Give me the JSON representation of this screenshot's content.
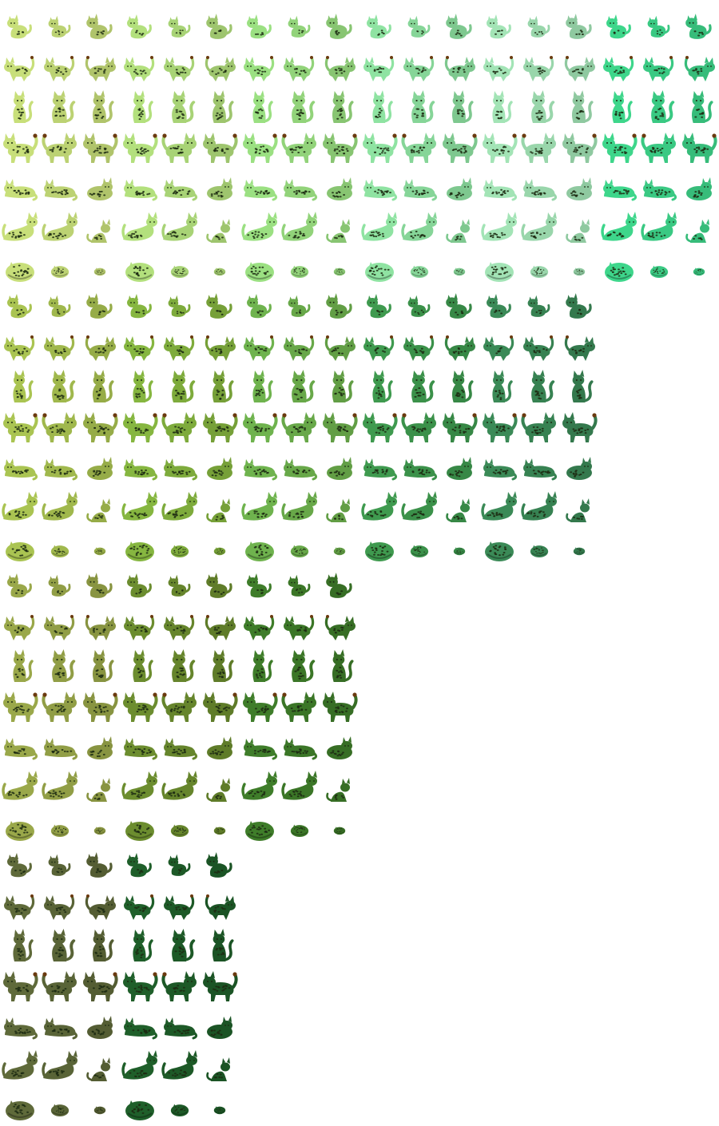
{
  "sprite_sheet": {
    "title": "",
    "blocks": [
      {
        "name": "light-green-cats",
        "palettes": [
          "#c8df7a",
          "#b3e07d",
          "#9be082",
          "#8fe3a2",
          "#a3e4b6",
          "#3ed68b"
        ],
        "rows": [
          "kitten",
          "adolescent",
          "adult-sitting",
          "adult-standing",
          "adult-lying",
          "adult-stretching",
          "sleeping"
        ]
      },
      {
        "name": "mid-green-cats",
        "palettes": [
          "#aac452",
          "#86b640",
          "#6fb34e",
          "#3f9a4f",
          "#3b8a57"
        ],
        "rows": [
          "kitten",
          "adolescent",
          "adult-sitting",
          "adult-standing",
          "adult-lying",
          "adult-stretching",
          "sleeping"
        ]
      },
      {
        "name": "olive-green-cats",
        "palettes": [
          "#9aa84a",
          "#6c8d2f",
          "#3f7d2a"
        ],
        "rows": [
          "kitten",
          "adolescent",
          "adult-sitting",
          "adult-standing",
          "adult-lying",
          "adult-stretching",
          "sleeping"
        ]
      },
      {
        "name": "dark-green-cats",
        "palettes": [
          "#5f6a3a",
          "#1f5f2a"
        ],
        "rows": [
          "kitten",
          "adolescent",
          "adult-sitting",
          "adult-standing",
          "adult-lying",
          "adult-stretching",
          "sleeping"
        ]
      }
    ],
    "marking_color": "#1c2a12",
    "tail_tip_color": "#6b3a10"
  }
}
